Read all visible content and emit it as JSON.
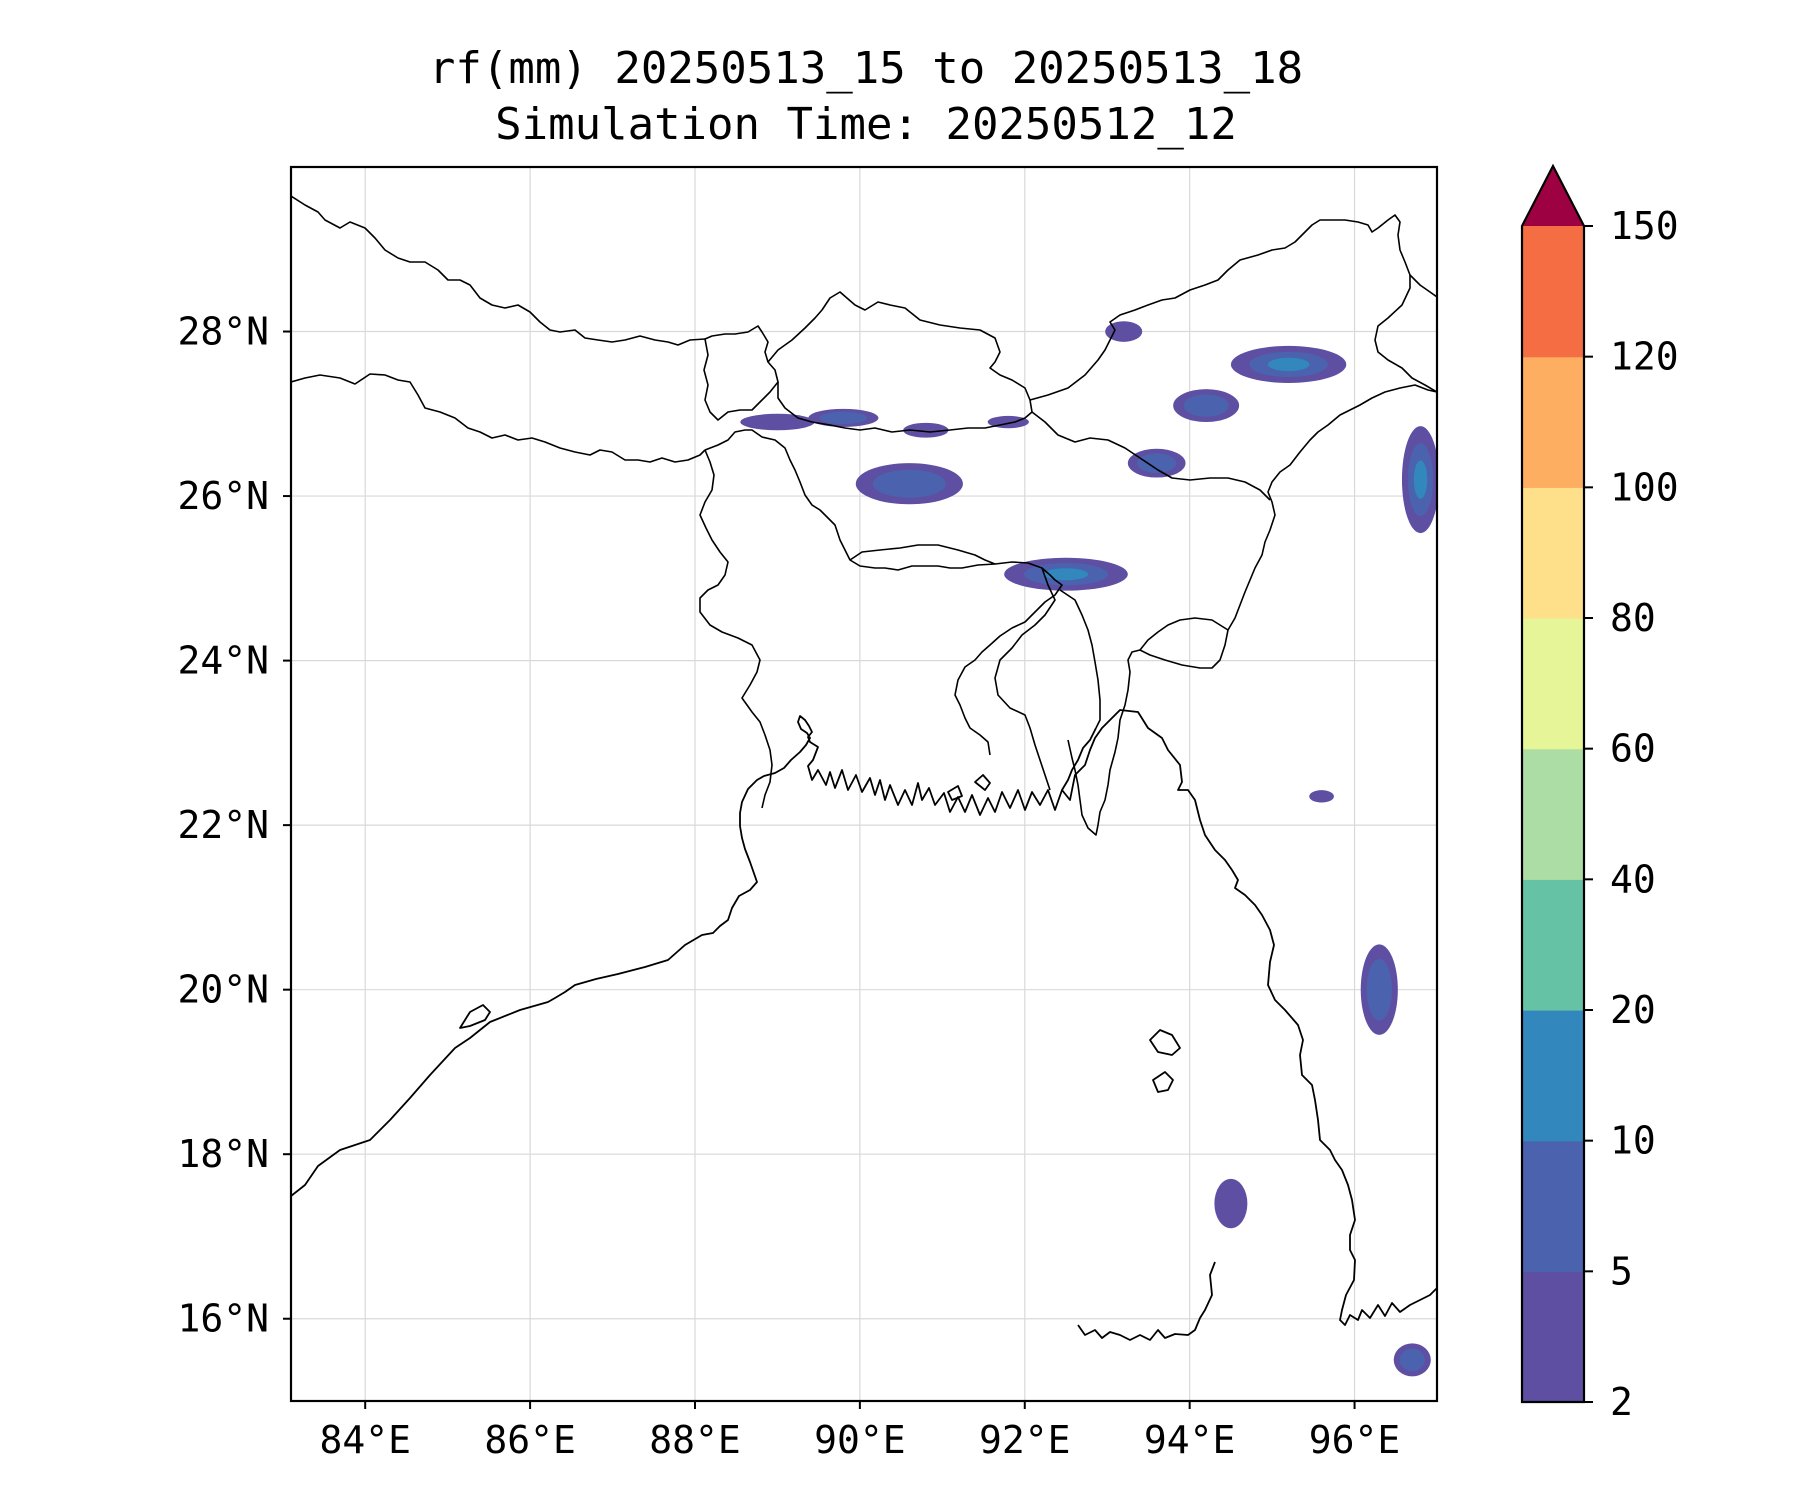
{
  "title": {
    "line1": "rf(mm) 20250513_15 to 20250513_18",
    "line2": "Simulation Time: 20250512_12"
  },
  "map": {
    "lon_range": [
      83.1,
      97.0
    ],
    "lat_range": [
      15.0,
      30.0
    ],
    "lon_ticks": [
      84,
      86,
      88,
      90,
      92,
      94,
      96
    ],
    "lat_ticks": [
      16,
      18,
      20,
      22,
      24,
      26,
      28
    ],
    "lon_tick_labels": [
      "84°E",
      "86°E",
      "88°E",
      "90°E",
      "92°E",
      "94°E",
      "96°E"
    ],
    "lat_tick_labels": [
      "16°N",
      "18°N",
      "20°N",
      "22°N",
      "24°N",
      "26°N",
      "28°N"
    ],
    "gridlines": true
  },
  "colorbar": {
    "levels": [
      2,
      5,
      10,
      20,
      40,
      60,
      80,
      100,
      120,
      150
    ],
    "level_labels": [
      "2",
      "5",
      "10",
      "20",
      "40",
      "60",
      "80",
      "100",
      "120",
      "150"
    ],
    "colors": [
      "#5e4fa2",
      "#4b63ae",
      "#3288bd",
      "#66c2a5",
      "#abdda4",
      "#e6f598",
      "#fee08b",
      "#fdae61",
      "#f46d43",
      "#d53e4f"
    ],
    "extend_color": "#9e0142",
    "extend": "max"
  },
  "chart_data": {
    "type": "heatmap",
    "variable": "rf(mm)",
    "levels": [
      2,
      5,
      10,
      20,
      40,
      60,
      80,
      100,
      120,
      150
    ],
    "rain_cells": [
      {
        "lon": 89.8,
        "lat": 26.95,
        "w": 0.85,
        "h": 0.22,
        "max_mm": 10
      },
      {
        "lon": 89.0,
        "lat": 26.9,
        "w": 0.9,
        "h": 0.2,
        "max_mm": 5
      },
      {
        "lon": 90.8,
        "lat": 26.8,
        "w": 0.55,
        "h": 0.18,
        "max_mm": 5
      },
      {
        "lon": 91.8,
        "lat": 26.9,
        "w": 0.5,
        "h": 0.15,
        "max_mm": 5
      },
      {
        "lon": 90.6,
        "lat": 26.15,
        "w": 1.3,
        "h": 0.5,
        "max_mm": 10
      },
      {
        "lon": 92.5,
        "lat": 25.05,
        "w": 1.5,
        "h": 0.4,
        "max_mm": 20
      },
      {
        "lon": 95.2,
        "lat": 27.6,
        "w": 1.4,
        "h": 0.45,
        "max_mm": 20
      },
      {
        "lon": 94.2,
        "lat": 27.1,
        "w": 0.8,
        "h": 0.4,
        "max_mm": 10
      },
      {
        "lon": 93.6,
        "lat": 26.4,
        "w": 0.7,
        "h": 0.35,
        "max_mm": 10
      },
      {
        "lon": 93.2,
        "lat": 28.0,
        "w": 0.45,
        "h": 0.25,
        "max_mm": 5
      },
      {
        "lon": 96.8,
        "lat": 26.2,
        "w": 0.45,
        "h": 1.3,
        "max_mm": 20
      },
      {
        "lon": 95.6,
        "lat": 22.35,
        "w": 0.3,
        "h": 0.15,
        "max_mm": 5
      },
      {
        "lon": 96.3,
        "lat": 20.0,
        "w": 0.45,
        "h": 1.1,
        "max_mm": 10
      },
      {
        "lon": 94.5,
        "lat": 17.4,
        "w": 0.4,
        "h": 0.6,
        "max_mm": 5
      },
      {
        "lon": 96.7,
        "lat": 15.5,
        "w": 0.45,
        "h": 0.4,
        "max_mm": 10
      }
    ]
  }
}
